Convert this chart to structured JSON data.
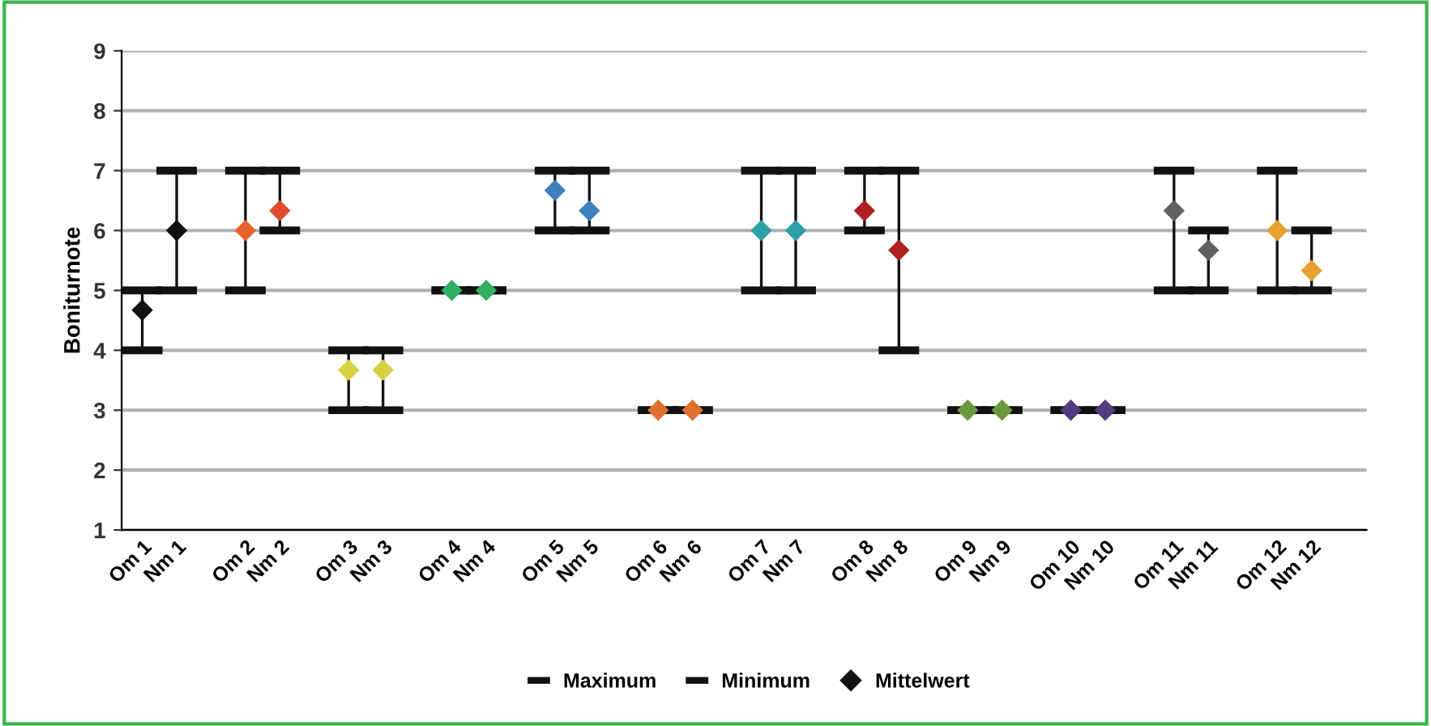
{
  "chart_data": {
    "type": "scatter",
    "ylabel": "Boniturnote",
    "categories": [
      "Om 1",
      "Nm 1",
      null,
      "Om 2",
      "Nm 2",
      null,
      "Om 3",
      "Nm 3",
      null,
      "Om 4",
      "Nm 4",
      null,
      "Om 5",
      "Nm 5",
      null,
      "Om 6",
      "Nm 6",
      null,
      "Om 7",
      "Nm 7",
      null,
      "Om 8",
      "Nm 8",
      null,
      "Om 9",
      "Nm 9",
      null,
      "Om 10",
      "Nm 10",
      null,
      "Om 11",
      "Nm 11",
      null,
      "Om 12",
      "Nm 12",
      null
    ],
    "series": [
      {
        "name": "Maximum",
        "color": "#111111",
        "values": [
          null,
          null,
          null,
          null,
          null,
          null,
          null,
          null,
          null,
          null,
          null,
          null,
          null,
          null,
          null,
          null,
          null,
          null,
          null,
          null,
          null,
          null,
          null,
          null,
          null,
          null,
          null,
          null,
          null,
          null,
          null,
          null,
          null,
          null,
          null,
          null
        ]
      },
      {
        "name": "Minimum",
        "color": "#111111",
        "values": [
          null,
          null,
          null,
          null,
          null,
          null,
          null,
          null,
          null,
          null,
          null,
          null,
          null,
          null,
          null,
          null,
          null,
          null,
          null,
          null,
          null,
          null,
          null,
          null,
          null,
          null,
          null,
          null,
          null,
          null,
          null,
          null,
          null,
          null,
          null,
          null
        ]
      },
      {
        "name": "Mittelwert",
        "color": "#111111",
        "marker": "diamond",
        "values": [
          4.67,
          6,
          null,
          6,
          6.33,
          null,
          3.67,
          3.67,
          null,
          5,
          5,
          null,
          6.67,
          6.33,
          null,
          3,
          3,
          null,
          6,
          6,
          null,
          6.33,
          5.67,
          null,
          3,
          3,
          null,
          3,
          3,
          null,
          6.33,
          5.67,
          null,
          6,
          5.33,
          null
        ],
        "errors": [
          [
            4,
            5
          ],
          [
            5,
            7
          ],
          null,
          [
            5,
            7
          ],
          [
            6,
            7
          ],
          null,
          [
            3,
            4
          ],
          [
            3,
            4
          ],
          null,
          [
            5,
            5
          ],
          [
            5,
            5
          ],
          null,
          [
            6,
            7
          ],
          [
            6,
            7
          ],
          null,
          [
            3,
            3
          ],
          [
            3,
            3
          ],
          null,
          [
            5,
            7
          ],
          [
            5,
            7
          ],
          null,
          [
            6,
            7
          ],
          [
            4,
            7
          ],
          null,
          [
            3,
            3
          ],
          [
            3,
            3
          ],
          null,
          [
            3,
            3
          ],
          [
            3,
            3
          ],
          null,
          [
            5,
            7
          ],
          [
            5,
            6
          ],
          null,
          [
            5,
            7
          ],
          [
            5,
            6
          ],
          null
        ],
        "colors": [
          "#111111",
          "#111111",
          null,
          "#e8602c",
          "#e04a30",
          null,
          "#d8d040",
          "#d8d040",
          null,
          "#30b060",
          "#30b060",
          null,
          "#3f7fc0",
          "#3f7fc0",
          null,
          "#e07030",
          "#e07030",
          null,
          "#30a0a8",
          "#30a0a8",
          null,
          "#b02020",
          "#b02020",
          null,
          "#6a9a40",
          "#6a9a40",
          null,
          "#503c80",
          "#503c80",
          null,
          "#606060",
          "#606060",
          null,
          "#e8a030",
          "#e8a030",
          null
        ]
      }
    ],
    "ylim": [
      1,
      9
    ],
    "yticks": [
      1,
      2,
      3,
      4,
      5,
      6,
      7,
      8,
      9
    ],
    "grid": "y",
    "legend": "bottom"
  }
}
